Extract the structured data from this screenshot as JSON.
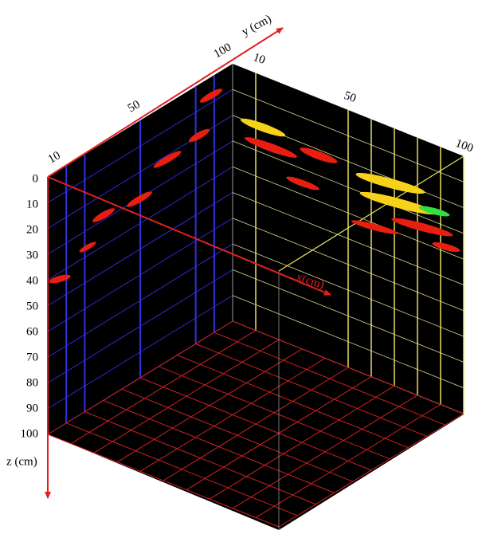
{
  "z_axis": {
    "title": "z (cm)",
    "ticks": [
      "0",
      "10",
      "20",
      "30",
      "40",
      "50",
      "60",
      "70",
      "80",
      "90",
      "100"
    ]
  },
  "y_axis": {
    "title": "y (cm)",
    "ticks": [
      "10",
      "50",
      "100"
    ]
  },
  "x_axis": {
    "title": "x(cm)",
    "ticks": [
      "10",
      "50",
      "100"
    ]
  }
}
